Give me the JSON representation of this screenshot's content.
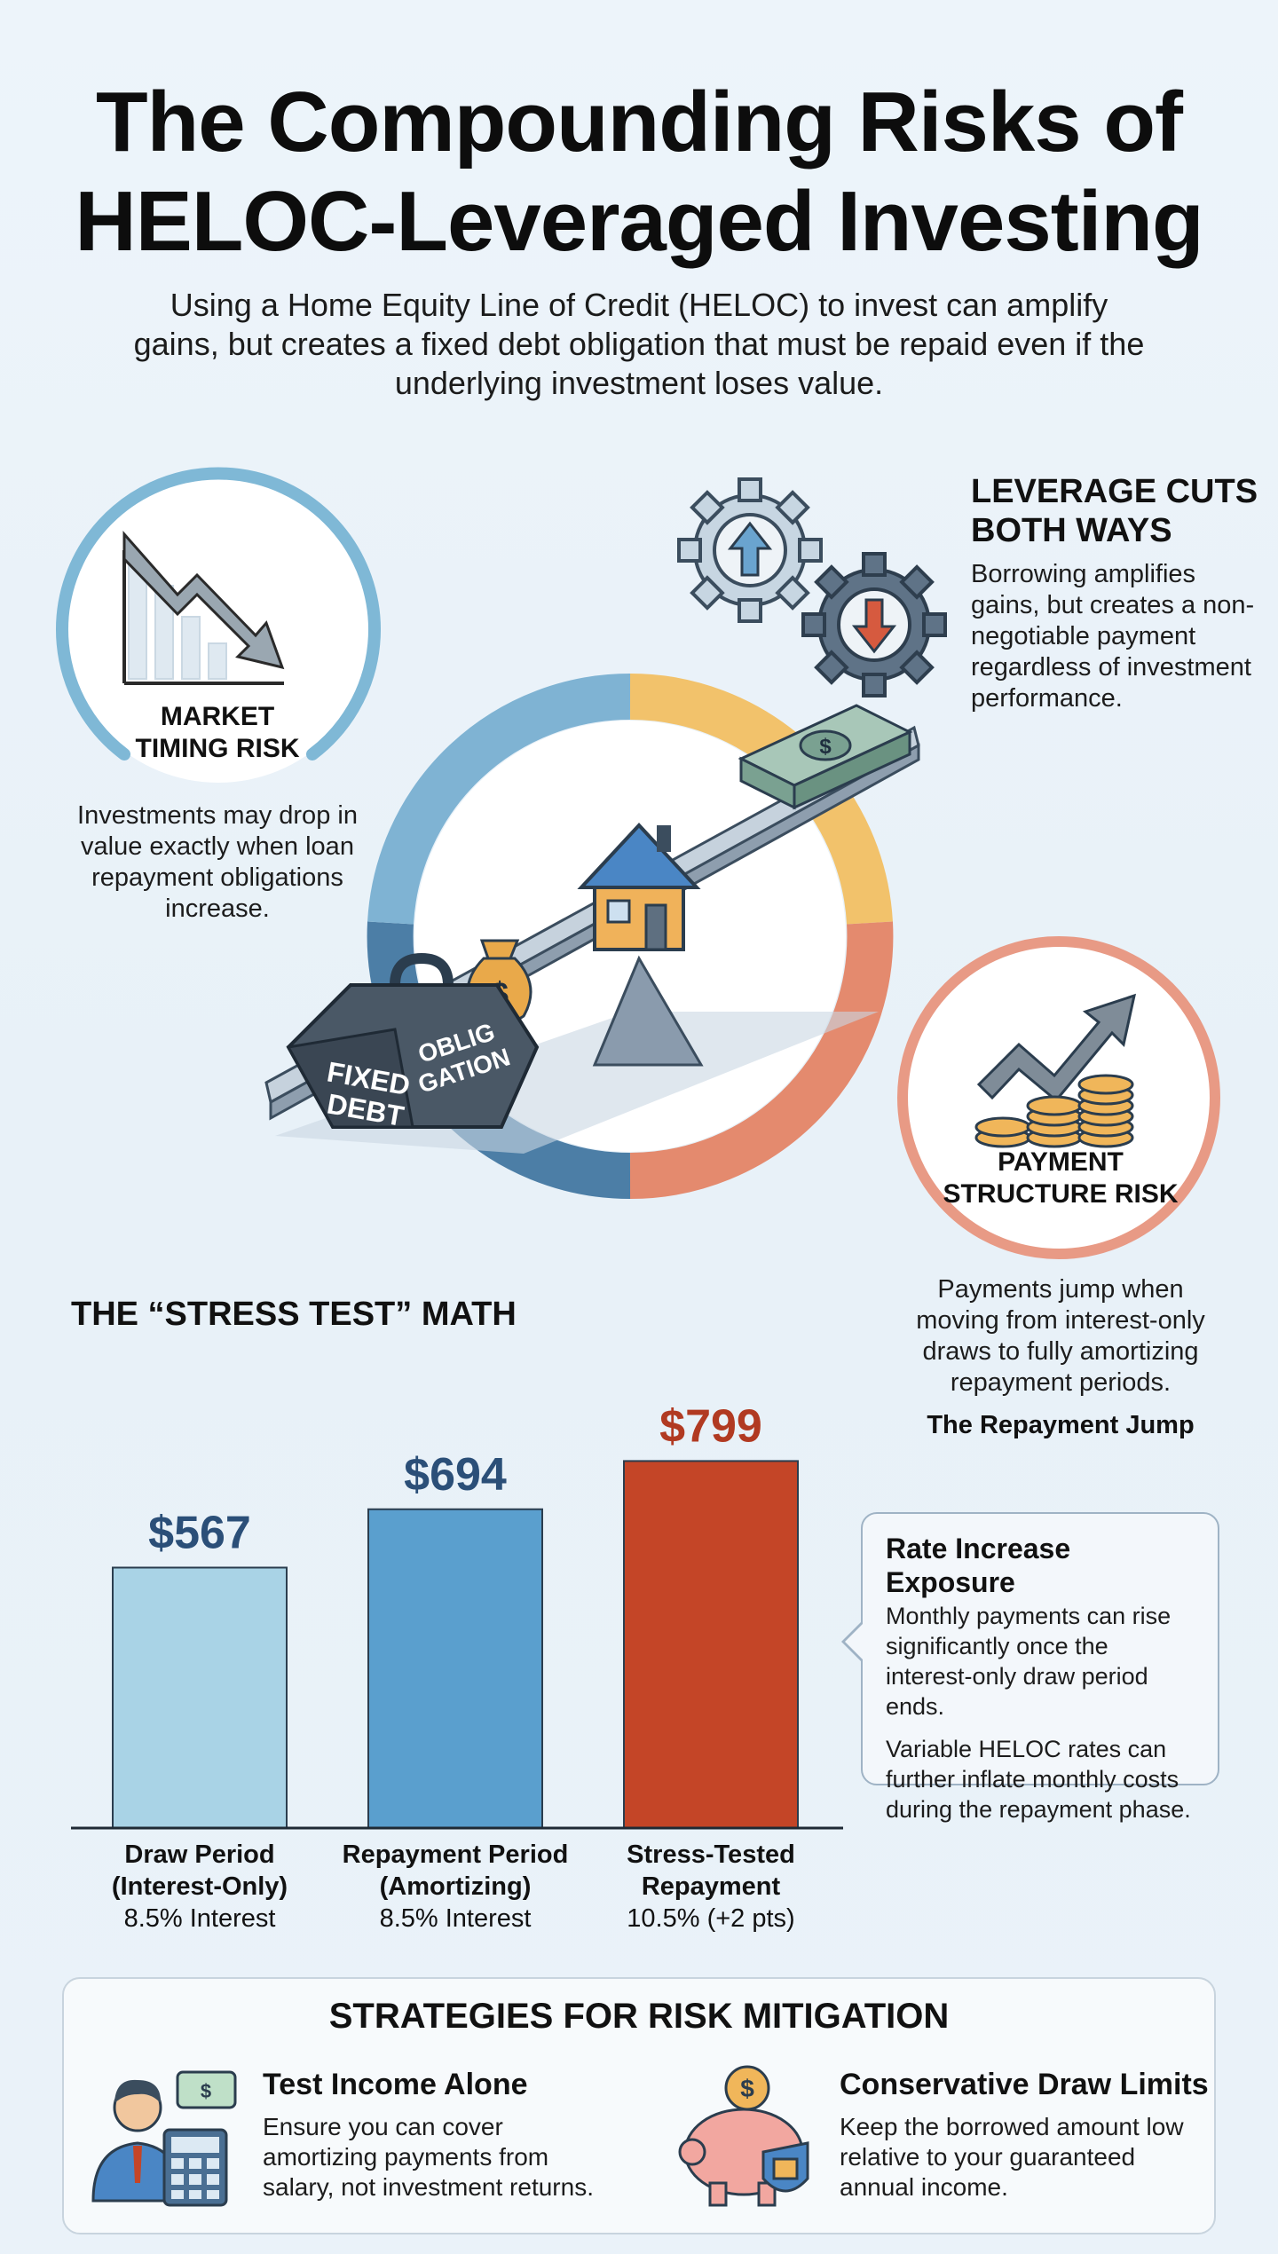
{
  "header": {
    "title_line1": "The Compounding Risks of",
    "title_line2": "HELOC-Leveraged Investing",
    "subtitle": "Using a Home Equity Line of Credit (HELOC) to invest can amplify gains, but creates a fixed debt obligation that must be repaid even if the underlying investment loses value."
  },
  "market_timing": {
    "label_line1": "MARKET",
    "label_line2": "TIMING RISK",
    "text": "Investments may drop in value exactly when loan repayment obligations increase."
  },
  "leverage": {
    "title_line1": "LEVERAGE CUTS",
    "title_line2": "BOTH WAYS",
    "text": "Borrowing amplifies gains, but creates a non-negotiable payment regardless of investment performance."
  },
  "illustration": {
    "weight_label_left_1": "FIXED",
    "weight_label_left_2": "DEBT",
    "weight_label_right_1": "OBLIG",
    "weight_label_right_2": "GATION",
    "bag_symbol": "$",
    "cash_symbol": "$"
  },
  "payment_structure": {
    "label_line1": "PAYMENT",
    "label_line2": "STRUCTURE RISK",
    "text": "Payments jump when moving from interest-only draws to fully amortizing repayment periods.",
    "jump_label": "The Repayment Jump"
  },
  "stress_test": {
    "title": "THE “STRESS TEST” MATH"
  },
  "chart_data": {
    "type": "bar",
    "title": "THE “STRESS TEST” MATH",
    "categories": [
      "Draw Period (Interest-Only)",
      "Repayment Period (Amortizing)",
      "Stress-Tested Repayment"
    ],
    "values": [
      567,
      694,
      799
    ],
    "value_labels": [
      "$567",
      "$694",
      "$799"
    ],
    "category_lines": [
      [
        "Draw Period",
        "(Interest-Only)",
        "8.5% Interest"
      ],
      [
        "Repayment Period",
        "(Amortizing)",
        "8.5% Interest"
      ],
      [
        "Stress-Tested",
        "Repayment",
        "10.5% (+2 pts)"
      ]
    ],
    "colors": [
      "#a9d3e6",
      "#5a9fce",
      "#c44527"
    ],
    "label_colors": [
      "#2b4f78",
      "#2b4f78",
      "#b13a22"
    ],
    "ylim": [
      0,
      850
    ],
    "grid": false,
    "xlabel": "",
    "ylabel": ""
  },
  "callout": {
    "title": "Rate Increase Exposure",
    "para1": "Monthly payments can rise significantly once the interest-only draw period ends.",
    "para2": "Variable HELOC rates can further inflate monthly costs during the repayment phase."
  },
  "strategies": {
    "title": "STRATEGIES FOR RISK MITIGATION",
    "items": [
      {
        "title": "Test Income Alone",
        "text": "Ensure you can cover amortizing payments from salary, not investment returns.",
        "icon": "person-calculator-icon"
      },
      {
        "title": "Conservative Draw Limits",
        "text": "Keep the borrowed amount low relative to your guaranteed annual income.",
        "icon": "piggy-bank-lock-icon"
      }
    ]
  }
}
